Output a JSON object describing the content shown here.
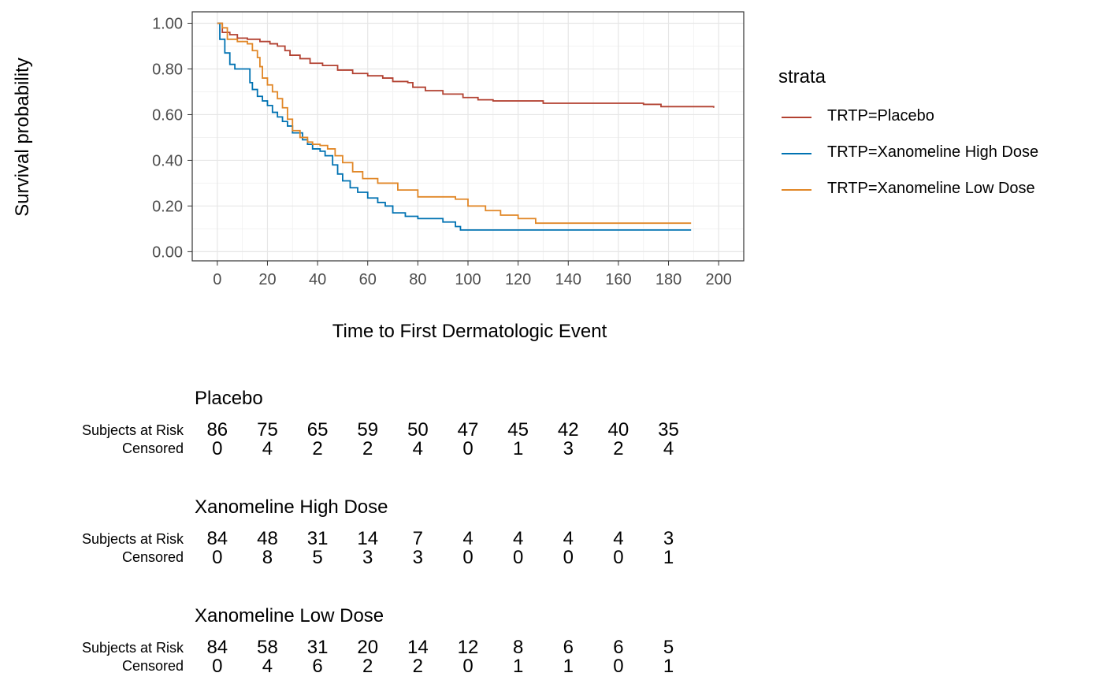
{
  "chart_data": {
    "type": "line",
    "subtype": "kaplan-meier step curves with risk table",
    "xlabel": "Time to First Dermatologic Event",
    "ylabel": "Survival probability",
    "xlim": [
      -10,
      210
    ],
    "ylim": [
      -0.04,
      1.05
    ],
    "x_ticks": [
      "0",
      "20",
      "40",
      "60",
      "80",
      "100",
      "120",
      "140",
      "160",
      "180",
      "200"
    ],
    "y_ticks": [
      "0.00",
      "0.20",
      "0.40",
      "0.60",
      "0.80",
      "1.00"
    ],
    "grid": true,
    "legend_position": "right",
    "legend_title": "strata",
    "series": [
      {
        "name": "TRTP=Placebo",
        "color": "#b24131",
        "x": [
          0,
          2,
          5,
          8,
          12,
          17,
          21,
          24,
          27,
          29,
          33,
          37,
          42,
          48,
          54,
          60,
          66,
          70,
          76,
          78,
          83,
          90,
          98,
          104,
          110,
          130,
          150,
          170,
          177,
          198
        ],
        "y": [
          1.0,
          0.96,
          0.95,
          0.935,
          0.93,
          0.92,
          0.91,
          0.9,
          0.88,
          0.86,
          0.845,
          0.825,
          0.815,
          0.795,
          0.78,
          0.77,
          0.76,
          0.745,
          0.74,
          0.72,
          0.705,
          0.69,
          0.675,
          0.665,
          0.66,
          0.65,
          0.65,
          0.645,
          0.635,
          0.63
        ]
      },
      {
        "name": "TRTP=Xanomeline High Dose",
        "color": "#0072b2",
        "x": [
          0,
          1,
          3,
          5,
          7,
          13,
          14,
          16,
          18,
          20,
          22,
          24,
          26,
          28,
          30,
          34,
          36,
          38,
          41,
          43,
          46,
          48,
          50,
          53,
          56,
          60,
          64,
          67,
          70,
          75,
          80,
          90,
          95,
          97,
          189
        ],
        "y": [
          1.0,
          0.93,
          0.87,
          0.82,
          0.8,
          0.74,
          0.71,
          0.68,
          0.66,
          0.64,
          0.61,
          0.59,
          0.57,
          0.55,
          0.52,
          0.49,
          0.47,
          0.45,
          0.44,
          0.42,
          0.38,
          0.34,
          0.31,
          0.28,
          0.26,
          0.235,
          0.215,
          0.2,
          0.17,
          0.155,
          0.145,
          0.13,
          0.11,
          0.095,
          0.095
        ]
      },
      {
        "name": "TRTP=Xanomeline Low Dose",
        "color": "#e18727",
        "x": [
          0,
          2,
          4,
          8,
          12,
          14,
          16,
          17,
          18,
          20,
          22,
          24,
          26,
          28,
          30,
          33,
          36,
          38,
          41,
          44,
          47,
          50,
          54,
          58,
          64,
          72,
          80,
          95,
          100,
          107,
          113,
          120,
          127,
          150,
          189
        ],
        "y": [
          1.0,
          0.98,
          0.93,
          0.92,
          0.91,
          0.88,
          0.85,
          0.81,
          0.76,
          0.73,
          0.7,
          0.67,
          0.63,
          0.58,
          0.53,
          0.5,
          0.48,
          0.47,
          0.465,
          0.45,
          0.42,
          0.39,
          0.35,
          0.32,
          0.3,
          0.27,
          0.24,
          0.23,
          0.2,
          0.18,
          0.16,
          0.145,
          0.125,
          0.125,
          0.125
        ]
      }
    ]
  },
  "risk_table": {
    "times": [
      "0",
      "20",
      "40",
      "60",
      "80",
      "100",
      "120",
      "140",
      "160",
      "180"
    ],
    "row_labels": {
      "at_risk": "Subjects at Risk",
      "censored": "Censored"
    },
    "groups": [
      {
        "title": "Placebo",
        "at_risk": [
          "86",
          "75",
          "65",
          "59",
          "50",
          "47",
          "45",
          "42",
          "40",
          "35"
        ],
        "censored": [
          "0",
          "4",
          "2",
          "2",
          "4",
          "0",
          "1",
          "3",
          "2",
          "4"
        ]
      },
      {
        "title": "Xanomeline High Dose",
        "at_risk": [
          "84",
          "48",
          "31",
          "14",
          "7",
          "4",
          "4",
          "4",
          "4",
          "3"
        ],
        "censored": [
          "0",
          "8",
          "5",
          "3",
          "3",
          "0",
          "0",
          "0",
          "0",
          "1"
        ]
      },
      {
        "title": "Xanomeline Low Dose",
        "at_risk": [
          "84",
          "58",
          "31",
          "20",
          "14",
          "12",
          "8",
          "6",
          "6",
          "5"
        ],
        "censored": [
          "0",
          "4",
          "6",
          "2",
          "2",
          "0",
          "1",
          "1",
          "0",
          "1"
        ]
      }
    ]
  }
}
